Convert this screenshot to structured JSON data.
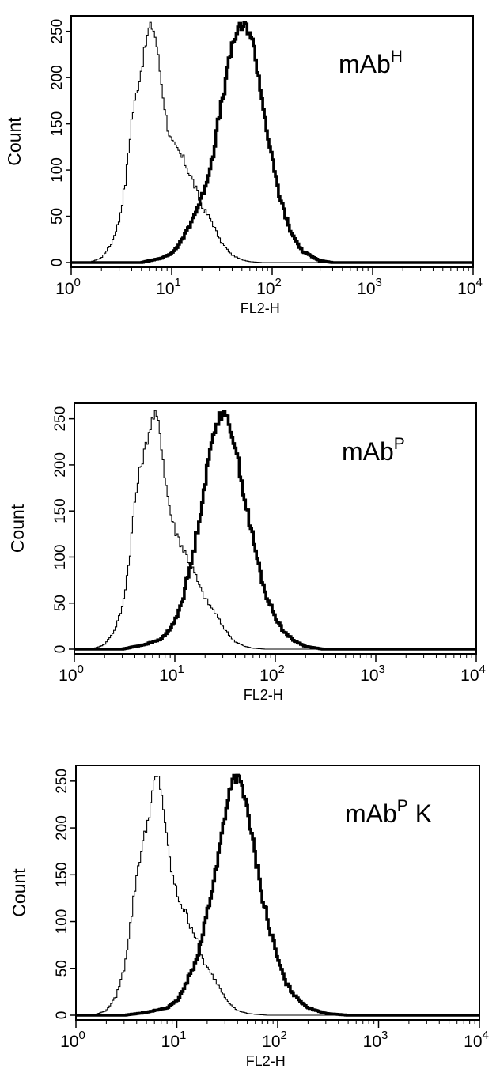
{
  "chart_data": [
    {
      "type": "line",
      "panel_label": {
        "text": "mAb",
        "sup": "H",
        "suffix": ""
      },
      "xlabel": "FL2-H",
      "ylabel": "Count",
      "xscale": "log",
      "xlim": [
        1,
        10000
      ],
      "ylim": [
        0,
        260
      ],
      "grid": false,
      "legend": "none",
      "x_ticks": [
        {
          "base": "10",
          "exp": "0",
          "value": 1
        },
        {
          "base": "10",
          "exp": "1",
          "value": 10
        },
        {
          "base": "10",
          "exp": "2",
          "value": 100
        },
        {
          "base": "10",
          "exp": "3",
          "value": 1000
        },
        {
          "base": "10",
          "exp": "4",
          "value": 10000
        }
      ],
      "y_ticks": [
        "0",
        "50",
        "100",
        "150",
        "200",
        "250"
      ],
      "series": [
        {
          "style": "thin",
          "x": [
            1.5,
            2,
            2.5,
            3,
            3.5,
            4,
            4.5,
            5,
            5.5,
            6,
            6.5,
            7,
            7.5,
            8,
            9,
            10,
            11,
            12,
            14,
            16,
            18,
            20,
            25,
            30,
            35,
            40,
            50,
            60,
            80,
            100
          ],
          "y": [
            0,
            5,
            20,
            45,
            90,
            155,
            185,
            210,
            235,
            255,
            255,
            240,
            215,
            190,
            150,
            130,
            122,
            118,
            105,
            90,
            75,
            60,
            45,
            25,
            15,
            8,
            3,
            1,
            0,
            0
          ]
        },
        {
          "style": "thick",
          "x": [
            5,
            8,
            10,
            12,
            15,
            20,
            25,
            30,
            35,
            40,
            45,
            50,
            55,
            60,
            65,
            70,
            80,
            90,
            100,
            120,
            150,
            200,
            300,
            400
          ],
          "y": [
            0,
            5,
            10,
            20,
            40,
            70,
            110,
            160,
            200,
            235,
            250,
            255,
            255,
            250,
            235,
            215,
            175,
            140,
            110,
            70,
            35,
            12,
            2,
            0
          ]
        }
      ]
    },
    {
      "type": "line",
      "panel_label": {
        "text": "mAb",
        "sup": "P",
        "suffix": ""
      },
      "xlabel": "FL2-H",
      "ylabel": "Count",
      "xscale": "log",
      "xlim": [
        1,
        10000
      ],
      "ylim": [
        0,
        260
      ],
      "grid": false,
      "legend": "none",
      "x_ticks": [
        {
          "base": "10",
          "exp": "0",
          "value": 1
        },
        {
          "base": "10",
          "exp": "1",
          "value": 10
        },
        {
          "base": "10",
          "exp": "2",
          "value": 100
        },
        {
          "base": "10",
          "exp": "3",
          "value": 1000
        },
        {
          "base": "10",
          "exp": "4",
          "value": 10000
        }
      ],
      "y_ticks": [
        "0",
        "50",
        "100",
        "150",
        "200",
        "250"
      ],
      "series": [
        {
          "style": "thin",
          "x": [
            1.5,
            2,
            2.5,
            3,
            3.5,
            4,
            4.5,
            5,
            5.5,
            6,
            6.5,
            7,
            7.5,
            8,
            9,
            10,
            11,
            12,
            14,
            16,
            18,
            20,
            25,
            30,
            35,
            40,
            50,
            60,
            80
          ],
          "y": [
            0,
            5,
            20,
            45,
            95,
            160,
            195,
            215,
            235,
            250,
            255,
            240,
            215,
            185,
            150,
            130,
            120,
            110,
            95,
            80,
            65,
            55,
            40,
            25,
            15,
            8,
            3,
            1,
            0
          ]
        },
        {
          "style": "thick",
          "x": [
            3,
            5,
            7,
            8,
            10,
            12,
            15,
            18,
            20,
            22,
            25,
            28,
            30,
            35,
            40,
            45,
            50,
            60,
            70,
            80,
            100,
            120,
            150,
            200,
            300
          ],
          "y": [
            0,
            5,
            10,
            15,
            30,
            55,
            100,
            150,
            180,
            210,
            240,
            255,
            255,
            245,
            220,
            190,
            160,
            120,
            85,
            60,
            35,
            20,
            10,
            3,
            0
          ]
        }
      ]
    },
    {
      "type": "line",
      "panel_label": {
        "text": "mAb",
        "sup": "P",
        "suffix": " K"
      },
      "xlabel": "FL2-H",
      "ylabel": "Count",
      "xscale": "log",
      "xlim": [
        1,
        10000
      ],
      "ylim": [
        0,
        260
      ],
      "grid": false,
      "legend": "none",
      "x_ticks": [
        {
          "base": "10",
          "exp": "0",
          "value": 1
        },
        {
          "base": "10",
          "exp": "1",
          "value": 10
        },
        {
          "base": "10",
          "exp": "2",
          "value": 100
        },
        {
          "base": "10",
          "exp": "3",
          "value": 1000
        },
        {
          "base": "10",
          "exp": "4",
          "value": 10000
        }
      ],
      "y_ticks": [
        "0",
        "50",
        "100",
        "150",
        "200",
        "250"
      ],
      "series": [
        {
          "style": "thin",
          "x": [
            1.5,
            2,
            2.5,
            3,
            3.5,
            4,
            4.5,
            5,
            5.5,
            6,
            6.5,
            7,
            7.5,
            8,
            9,
            10,
            11,
            12,
            14,
            16,
            18,
            20,
            25,
            30,
            35,
            40,
            50,
            60,
            80,
            100
          ],
          "y": [
            0,
            5,
            20,
            50,
            100,
            150,
            180,
            200,
            225,
            250,
            255,
            240,
            215,
            185,
            150,
            130,
            120,
            110,
            95,
            80,
            60,
            50,
            35,
            20,
            10,
            5,
            2,
            1,
            0,
            0
          ]
        },
        {
          "style": "thick",
          "x": [
            3,
            5,
            8,
            10,
            12,
            15,
            18,
            20,
            25,
            30,
            35,
            40,
            45,
            50,
            60,
            70,
            80,
            100,
            120,
            150,
            200,
            300,
            500
          ],
          "y": [
            0,
            3,
            8,
            15,
            30,
            55,
            85,
            110,
            160,
            215,
            250,
            255,
            240,
            220,
            170,
            130,
            100,
            60,
            35,
            20,
            8,
            2,
            0
          ]
        }
      ]
    }
  ]
}
